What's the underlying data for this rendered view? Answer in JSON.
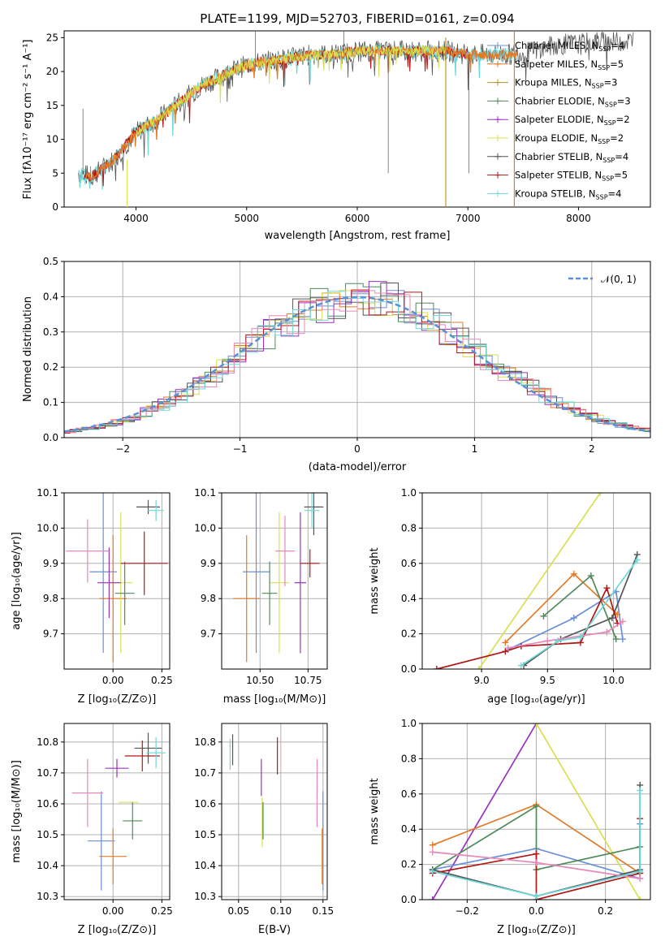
{
  "title": "PLATE=1199, MJD=52703, FIBERID=0161, z=0.094",
  "colors": {
    "chabrier_miles": "#6a8fd8",
    "salpeter_miles": "#e07b2a",
    "kroupa_miles": "#b8952a",
    "chabrier_elodie": "#4f8a5a",
    "salpeter_elodie": "#9b30c0",
    "kroupa_elodie": "#d8e050",
    "chabrier_stelib": "#555555",
    "salpeter_stelib": "#b01818",
    "kroupa_stelib": "#6ed8d8",
    "extra_pink": "#e888b8",
    "gauss": "#5b8fd6",
    "grid": "#b0b0b0"
  },
  "chart_data": [
    {
      "id": "spectrum",
      "type": "line",
      "xlabel": "wavelength [Angstrom, rest frame]",
      "ylabel": "Flux [fλ10⁻¹⁷ erg cm⁻² s⁻¹ A⁻¹]",
      "xticks": [
        "4000",
        "5000",
        "6000",
        "7000",
        "8000"
      ],
      "yticks": [
        "0",
        "5",
        "10",
        "15",
        "20",
        "25"
      ],
      "xlim": [
        3350,
        8650
      ],
      "ylim": [
        0,
        26
      ],
      "grid": false,
      "legend_position": "top-right",
      "legend": [
        "Chabrier MILES, N_SSP=4",
        "Salpeter MILES, N_SSP=5",
        "Kroupa MILES, N_SSP=3",
        "Chabrier ELODIE, N_SSP=3",
        "Salpeter ELODIE, N_SSP=2",
        "Kroupa ELODIE, N_SSP=2",
        "Chabrier STELIB, N_SSP=4",
        "Salpeter STELIB, N_SSP=5",
        "Kroupa STELIB, N_SSP=4"
      ],
      "continuum": {
        "x": [
          3480,
          3600,
          3800,
          4000,
          4200,
          4400,
          4600,
          4800,
          5000,
          5200,
          5400,
          5600,
          5800,
          6000,
          6200,
          6400,
          6600,
          6800,
          7000,
          7200,
          7400,
          7600,
          7800,
          8000,
          8200,
          8500
        ],
        "y": [
          5,
          4.5,
          7,
          11,
          13,
          15.5,
          18,
          19.5,
          21,
          21.5,
          22,
          22.5,
          22.5,
          23,
          23,
          23,
          23,
          23,
          22.5,
          22.5,
          22.5,
          23,
          24,
          24,
          24.5,
          24.5
        ]
      }
    },
    {
      "id": "residual-hist",
      "type": "line",
      "xlabel": "(data-model)/error",
      "ylabel": "Normed distribution",
      "xticks": [
        "−2",
        "−1",
        "0",
        "1",
        "2"
      ],
      "yticks": [
        "0.0",
        "0.1",
        "0.2",
        "0.3",
        "0.4",
        "0.5"
      ],
      "xlim": [
        -2.5,
        2.5
      ],
      "ylim": [
        0,
        0.5
      ],
      "grid": true,
      "legend_position": "top-right",
      "legend": [
        "𝒩(0, 1)"
      ]
    },
    {
      "id": "age-vs-z",
      "type": "scatter",
      "xlabel": "Z [log₁₀(Z/Z⊙)]",
      "ylabel": "age  [log₁₀(age/yr)]",
      "xticks": [
        "0.00",
        "0.25"
      ],
      "yticks": [
        "9.7",
        "9.8",
        "9.9",
        "10.0",
        "10.1"
      ],
      "xlim": [
        -0.25,
        0.29
      ],
      "ylim": [
        9.6,
        10.1
      ],
      "grid": true,
      "points": [
        {
          "c": "chabrier_miles",
          "x": -0.05,
          "y": 9.876,
          "xe": 0.07,
          "ye": 0.23
        },
        {
          "c": "salpeter_miles",
          "x": 0.0,
          "y": 9.8,
          "xe": 0.07,
          "ye": 0.18
        },
        {
          "c": "kroupa_elodie",
          "x": 0.04,
          "y": 9.845,
          "xe": 0.06,
          "ye": 0.2
        },
        {
          "c": "chabrier_elodie",
          "x": 0.06,
          "y": 9.815,
          "xe": 0.05,
          "ye": 0.09
        },
        {
          "c": "salpeter_elodie",
          "x": -0.02,
          "y": 9.845,
          "xe": 0.06,
          "ye": 0.1
        },
        {
          "c": "extra_pink",
          "x": -0.13,
          "y": 9.935,
          "xe": 0.11,
          "ye": 0.09
        },
        {
          "c": "salpeter_stelib",
          "x": 0.16,
          "y": 9.9,
          "xe": 0.12,
          "ye": 0.09
        },
        {
          "c": "chabrier_stelib",
          "x": 0.18,
          "y": 10.06,
          "xe": 0.06,
          "ye": 0.02
        },
        {
          "c": "kroupa_stelib",
          "x": 0.22,
          "y": 10.05,
          "xe": 0.04,
          "ye": 0.03
        }
      ]
    },
    {
      "id": "age-vs-mass",
      "type": "scatter",
      "xlabel": "mass [log₁₀(M/M⊙)]",
      "ylabel": "",
      "xticks": [
        "10.50",
        "10.75"
      ],
      "yticks": [
        "9.7",
        "9.8",
        "9.9",
        "10.0",
        "10.1"
      ],
      "xlim": [
        10.3,
        10.85
      ],
      "ylim": [
        9.6,
        10.1
      ],
      "grid": true,
      "points": [
        {
          "c": "chabrier_miles",
          "x": 10.48,
          "y": 9.876,
          "xe": 0.07,
          "ye": 0.23
        },
        {
          "c": "salpeter_miles",
          "x": 10.43,
          "y": 9.8,
          "xe": 0.07,
          "ye": 0.18
        },
        {
          "c": "kroupa_elodie",
          "x": 10.6,
          "y": 9.845,
          "xe": 0.05,
          "ye": 0.2
        },
        {
          "c": "chabrier_elodie",
          "x": 10.55,
          "y": 9.815,
          "xe": 0.04,
          "ye": 0.09
        },
        {
          "c": "salpeter_elodie",
          "x": 10.71,
          "y": 9.845,
          "xe": 0.03,
          "ye": 0.2
        },
        {
          "c": "extra_pink",
          "x": 10.63,
          "y": 9.935,
          "xe": 0.05,
          "ye": 0.1
        },
        {
          "c": "salpeter_stelib",
          "x": 10.76,
          "y": 9.9,
          "xe": 0.05,
          "ye": 0.04
        },
        {
          "c": "chabrier_stelib",
          "x": 10.78,
          "y": 10.06,
          "xe": 0.05,
          "ye": 0.08
        },
        {
          "c": "kroupa_stelib",
          "x": 10.77,
          "y": 10.05,
          "xe": 0.04,
          "ye": 0.05
        }
      ]
    },
    {
      "id": "weight-vs-age",
      "type": "line",
      "xlabel": "age  [log₁₀(age/yr)]",
      "ylabel": "mass weight",
      "xticks": [
        "9.0",
        "9.5",
        "10.0"
      ],
      "yticks": [
        "0.0",
        "0.2",
        "0.4",
        "0.6",
        "0.8",
        "1.0"
      ],
      "xlim": [
        8.55,
        10.28
      ],
      "ylim": [
        0,
        1.0
      ],
      "grid": true,
      "series": [
        {
          "c": "kroupa_elodie",
          "x": [
            8.98,
            9.9
          ],
          "y": [
            0,
            1.0
          ]
        },
        {
          "c": "chabrier_miles",
          "x": [
            9.2,
            9.7,
            10.02,
            10.07
          ],
          "y": [
            0.11,
            0.29,
            0.44,
            0.17
          ]
        },
        {
          "c": "salpeter_miles",
          "x": [
            9.18,
            9.7,
            10.03
          ],
          "y": [
            0.15,
            0.54,
            0.31
          ]
        },
        {
          "c": "chabrier_elodie",
          "x": [
            9.47,
            9.83,
            10.02
          ],
          "y": [
            0.3,
            0.53,
            0.17
          ]
        },
        {
          "c": "chabrier_stelib",
          "x": [
            9.32,
            9.6,
            9.99,
            10.18
          ],
          "y": [
            0.02,
            0.17,
            0.29,
            0.65
          ]
        },
        {
          "c": "salpeter_stelib",
          "x": [
            8.66,
            9.18,
            9.3,
            9.75,
            9.95,
            10.03
          ],
          "y": [
            0.0,
            0.1,
            0.13,
            0.15,
            0.46,
            0.26
          ]
        },
        {
          "c": "extra_pink",
          "x": [
            9.2,
            9.5,
            9.95,
            10.07
          ],
          "y": [
            0.12,
            0.16,
            0.21,
            0.27
          ]
        },
        {
          "c": "kroupa_stelib",
          "x": [
            9.3,
            9.58,
            9.75,
            10.18
          ],
          "y": [
            0.02,
            0.16,
            0.18,
            0.62
          ]
        }
      ]
    },
    {
      "id": "mass-vs-z",
      "type": "scatter",
      "xlabel": "Z [log₁₀(Z/Z⊙)]",
      "ylabel": "mass [log₁₀(M/M⊙)]",
      "xticks": [
        "0.00",
        "0.25"
      ],
      "yticks": [
        "10.3",
        "10.4",
        "10.5",
        "10.6",
        "10.7",
        "10.8"
      ],
      "xlim": [
        -0.25,
        0.29
      ],
      "ylim": [
        10.29,
        10.86
      ],
      "grid": true,
      "points": [
        {
          "c": "chabrier_miles",
          "x": -0.06,
          "y": 10.48,
          "xe": 0.07,
          "ye": 0.16
        },
        {
          "c": "salpeter_miles",
          "x": 0.0,
          "y": 10.43,
          "xe": 0.07,
          "ye": 0.09
        },
        {
          "c": "kroupa_elodie",
          "x": 0.08,
          "y": 10.605,
          "xe": 0.05,
          "ye": 0.0
        },
        {
          "c": "chabrier_elodie",
          "x": 0.1,
          "y": 10.545,
          "xe": 0.05,
          "ye": 0.06
        },
        {
          "c": "salpeter_elodie",
          "x": 0.02,
          "y": 10.715,
          "xe": 0.06,
          "ye": 0.03
        },
        {
          "c": "extra_pink",
          "x": -0.13,
          "y": 10.635,
          "xe": 0.08,
          "ye": 0.11
        },
        {
          "c": "salpeter_stelib",
          "x": 0.15,
          "y": 10.755,
          "xe": 0.09,
          "ye": 0.05
        },
        {
          "c": "chabrier_stelib",
          "x": 0.18,
          "y": 10.78,
          "xe": 0.07,
          "ye": 0.05
        },
        {
          "c": "kroupa_stelib",
          "x": 0.22,
          "y": 10.765,
          "xe": 0.05,
          "ye": 0.05
        }
      ]
    },
    {
      "id": "mass-vs-ebv",
      "type": "scatter",
      "xlabel": "E(B-V)",
      "ylabel": "",
      "xticks": [
        "0.05",
        "0.10",
        "0.15"
      ],
      "yticks": [
        "10.3",
        "10.4",
        "10.5",
        "10.6",
        "10.7",
        "10.8"
      ],
      "xlim": [
        0.03,
        0.155
      ],
      "ylim": [
        10.29,
        10.86
      ],
      "grid": true,
      "points": [
        {
          "c": "chabrier_miles",
          "x": 0.15,
          "y": 10.48,
          "xe": 0,
          "ye": 0.16
        },
        {
          "c": "salpeter_miles",
          "x": 0.149,
          "y": 10.43,
          "xe": 0,
          "ye": 0.09
        },
        {
          "c": "kroupa_elodie",
          "x": 0.078,
          "y": 10.54,
          "xe": 0,
          "ye": 0.08
        },
        {
          "c": "chabrier_elodie",
          "x": 0.079,
          "y": 10.545,
          "xe": 0,
          "ye": 0.06
        },
        {
          "c": "salpeter_elodie",
          "x": 0.077,
          "y": 10.685,
          "xe": 0,
          "ye": 0.06
        },
        {
          "c": "extra_pink",
          "x": 0.143,
          "y": 10.635,
          "xe": 0,
          "ye": 0.11
        },
        {
          "c": "salpeter_stelib",
          "x": 0.096,
          "y": 10.755,
          "xe": 0,
          "ye": 0.06
        },
        {
          "c": "chabrier_stelib",
          "x": 0.043,
          "y": 10.775,
          "xe": 0,
          "ye": 0.05
        },
        {
          "c": "kroupa_stelib",
          "x": 0.04,
          "y": 10.76,
          "xe": 0,
          "ye": 0.05
        }
      ]
    },
    {
      "id": "weight-vs-z",
      "type": "line",
      "xlabel": "Z [log₁₀(Z/Z⊙)]",
      "ylabel": "mass weight",
      "xticks": [
        "−0.2",
        "0.0",
        "0.2"
      ],
      "yticks": [
        "0.0",
        "0.2",
        "0.4",
        "0.6",
        "0.8",
        "1.0"
      ],
      "xlim": [
        -0.33,
        0.33
      ],
      "ylim": [
        0,
        1.0
      ],
      "grid": true,
      "series": [
        {
          "c": "salpeter_elodie",
          "x": [
            -0.3,
            0.0
          ],
          "y": [
            0,
            1.0
          ]
        },
        {
          "c": "kroupa_elodie",
          "x": [
            0.0,
            0.3
          ],
          "y": [
            1.0,
            0.0
          ]
        },
        {
          "c": "chabrier_miles",
          "x": [
            -0.3,
            0.0,
            0.3,
            0.3
          ],
          "y": [
            0.17,
            0.29,
            0.12,
            0.43
          ]
        },
        {
          "c": "salpeter_miles",
          "x": [
            -0.3,
            0.0,
            0.3
          ],
          "y": [
            0.31,
            0.54,
            0.15
          ]
        },
        {
          "c": "chabrier_elodie",
          "x": [
            -0.3,
            0.0,
            0.0,
            0.3
          ],
          "y": [
            0.17,
            0.53,
            0.17,
            0.3
          ]
        },
        {
          "c": "chabrier_stelib",
          "x": [
            -0.3,
            0.0,
            0.3,
            0.3
          ],
          "y": [
            0.17,
            0.02,
            0.17,
            0.65
          ]
        },
        {
          "c": "salpeter_stelib",
          "x": [
            -0.3,
            0.0,
            0.0,
            0.3,
            0.3
          ],
          "y": [
            0.15,
            0.26,
            0.0,
            0.15,
            0.46
          ]
        },
        {
          "c": "extra_pink",
          "x": [
            -0.3,
            0.0,
            0.3
          ],
          "y": [
            0.27,
            0.21,
            0.12
          ]
        },
        {
          "c": "kroupa_stelib",
          "x": [
            -0.3,
            0.0,
            0.3,
            0.3
          ],
          "y": [
            0.16,
            0.02,
            0.16,
            0.62
          ]
        }
      ]
    }
  ]
}
